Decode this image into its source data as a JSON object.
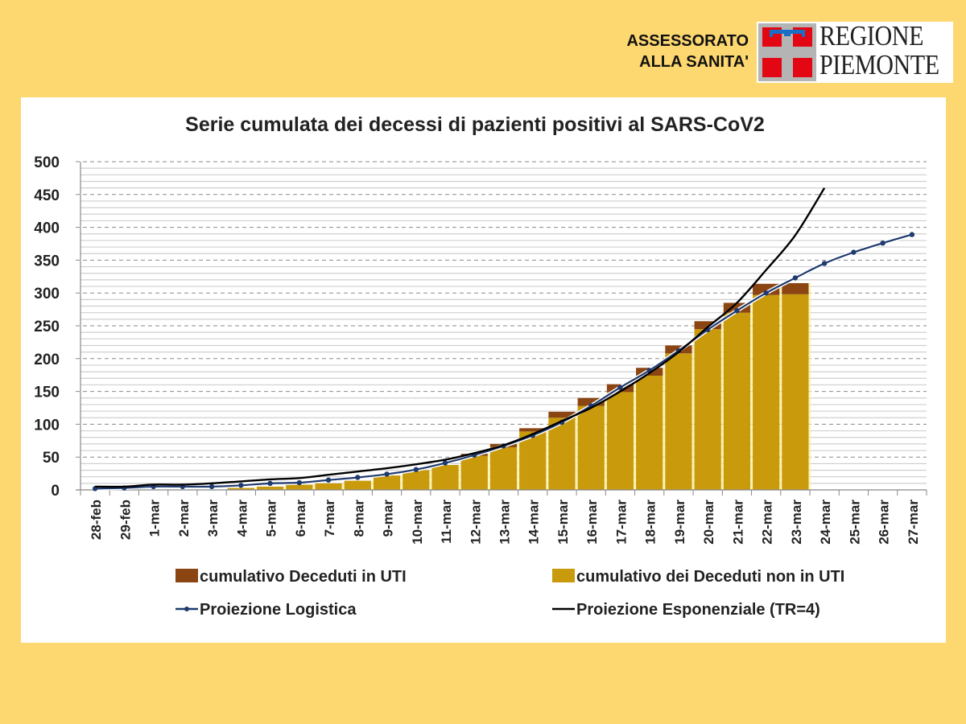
{
  "header": {
    "line1": "ASSESSORATO",
    "line2": "ALLA SANITA'",
    "logo_line1": "REGIONE",
    "logo_line2": "PIEMONTE"
  },
  "colors": {
    "background": "#fdd870",
    "bar_uti": "#8b4513",
    "bar_non_uti": "#c89a0c",
    "logistic": "#1f3a6e",
    "exponential": "#000000",
    "logo_red": "#e30613",
    "logo_blue": "#1a6fc4",
    "logo_grey": "#b4b4b4"
  },
  "chart_data": {
    "type": "bar",
    "title": "Serie cumulata dei decessi di pazienti positivi al SARS-CoV2",
    "xlabel": "",
    "ylabel": "",
    "ylim": [
      0,
      500
    ],
    "yticks": [
      0,
      50,
      100,
      150,
      200,
      250,
      300,
      350,
      400,
      450,
      500
    ],
    "grid": true,
    "stacked": true,
    "legend_position": "bottom",
    "categories": [
      "28-feb",
      "29-feb",
      "1-mar",
      "2-mar",
      "3-mar",
      "4-mar",
      "5-mar",
      "6-mar",
      "7-mar",
      "8-mar",
      "9-mar",
      "10-mar",
      "11-mar",
      "12-mar",
      "13-mar",
      "14-mar",
      "15-mar",
      "16-mar",
      "17-mar",
      "18-mar",
      "19-mar",
      "20-mar",
      "21-mar",
      "22-mar",
      "23-mar",
      "24-mar",
      "25-mar",
      "26-mar",
      "27-mar"
    ],
    "series": [
      {
        "name": "cumulativo dei Deceduti non in UTI",
        "kind": "bar",
        "values": [
          0,
          0,
          0,
          0,
          0,
          3,
          5,
          8,
          10,
          14,
          22,
          30,
          38,
          52,
          65,
          89,
          110,
          128,
          149,
          174,
          208,
          245,
          270,
          297,
          298,
          null,
          null,
          null,
          null
        ]
      },
      {
        "name": "cumulativo Deceduti in UTI",
        "kind": "bar",
        "values": [
          0,
          0,
          0,
          0,
          0,
          0,
          0,
          0,
          0,
          0,
          0,
          0,
          0,
          3,
          5,
          5,
          9,
          12,
          12,
          12,
          12,
          12,
          15,
          17,
          17,
          null,
          null,
          null,
          null
        ]
      },
      {
        "name": "Proiezione Logistica",
        "kind": "line",
        "marker": "dot",
        "values": [
          2,
          3,
          5,
          5,
          5,
          7,
          10,
          11,
          15,
          19,
          24,
          31,
          41,
          53,
          67,
          83,
          103,
          128,
          156,
          182,
          212,
          244,
          273,
          300,
          323,
          345,
          362,
          376,
          389
        ]
      },
      {
        "name": "Proiezione Esponenziale (TR=4)",
        "kind": "line",
        "marker": "none",
        "values": [
          5,
          5,
          8,
          8,
          10,
          13,
          16,
          18,
          23,
          28,
          33,
          39,
          46,
          56,
          68,
          85,
          105,
          125,
          150,
          178,
          210,
          248,
          285,
          335,
          388,
          460,
          null,
          null,
          null
        ]
      }
    ],
    "legend": [
      {
        "label": "cumulativo Deceduti in UTI",
        "symbol": "square",
        "color": "#8b4513"
      },
      {
        "label": "cumulativo dei Deceduti non in UTI",
        "symbol": "square",
        "color": "#c89a0c"
      },
      {
        "label": "Proiezione Logistica",
        "symbol": "line-dot",
        "color": "#1f3a6e"
      },
      {
        "label": "Proiezione Esponenziale (TR=4)",
        "symbol": "line",
        "color": "#000000"
      }
    ]
  }
}
